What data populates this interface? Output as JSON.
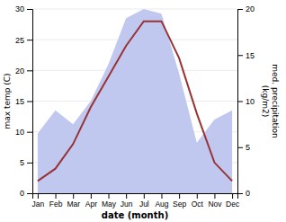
{
  "chart_data": {
    "type": "line",
    "xlabel": "date (month)",
    "ylabel": "max temp (C)",
    "y2label": "med. precipitation\n(kg/m2)",
    "categories": [
      "Jan",
      "Feb",
      "Mar",
      "Apr",
      "May",
      "Jun",
      "Jul",
      "Aug",
      "Sep",
      "Oct",
      "Nov",
      "Dec"
    ],
    "series": [
      {
        "type": "area",
        "axis": "y2",
        "color": "#c0c8f0",
        "values": [
          6.5,
          9.0,
          7.5,
          10.0,
          14.0,
          19.0,
          20.0,
          19.5,
          13.0,
          5.5,
          8.0,
          9.0
        ]
      },
      {
        "type": "line",
        "color": "#993333",
        "values": [
          2,
          4,
          8,
          14,
          19,
          24,
          28,
          28,
          22,
          13,
          5,
          2
        ]
      }
    ],
    "ylim": [
      0,
      30
    ],
    "yticks": [
      0,
      5,
      10,
      15,
      20,
      25,
      30
    ],
    "y2lim": [
      0,
      20
    ],
    "y2ticks": [
      0,
      5,
      10,
      15,
      20
    ],
    "grid": true
  }
}
